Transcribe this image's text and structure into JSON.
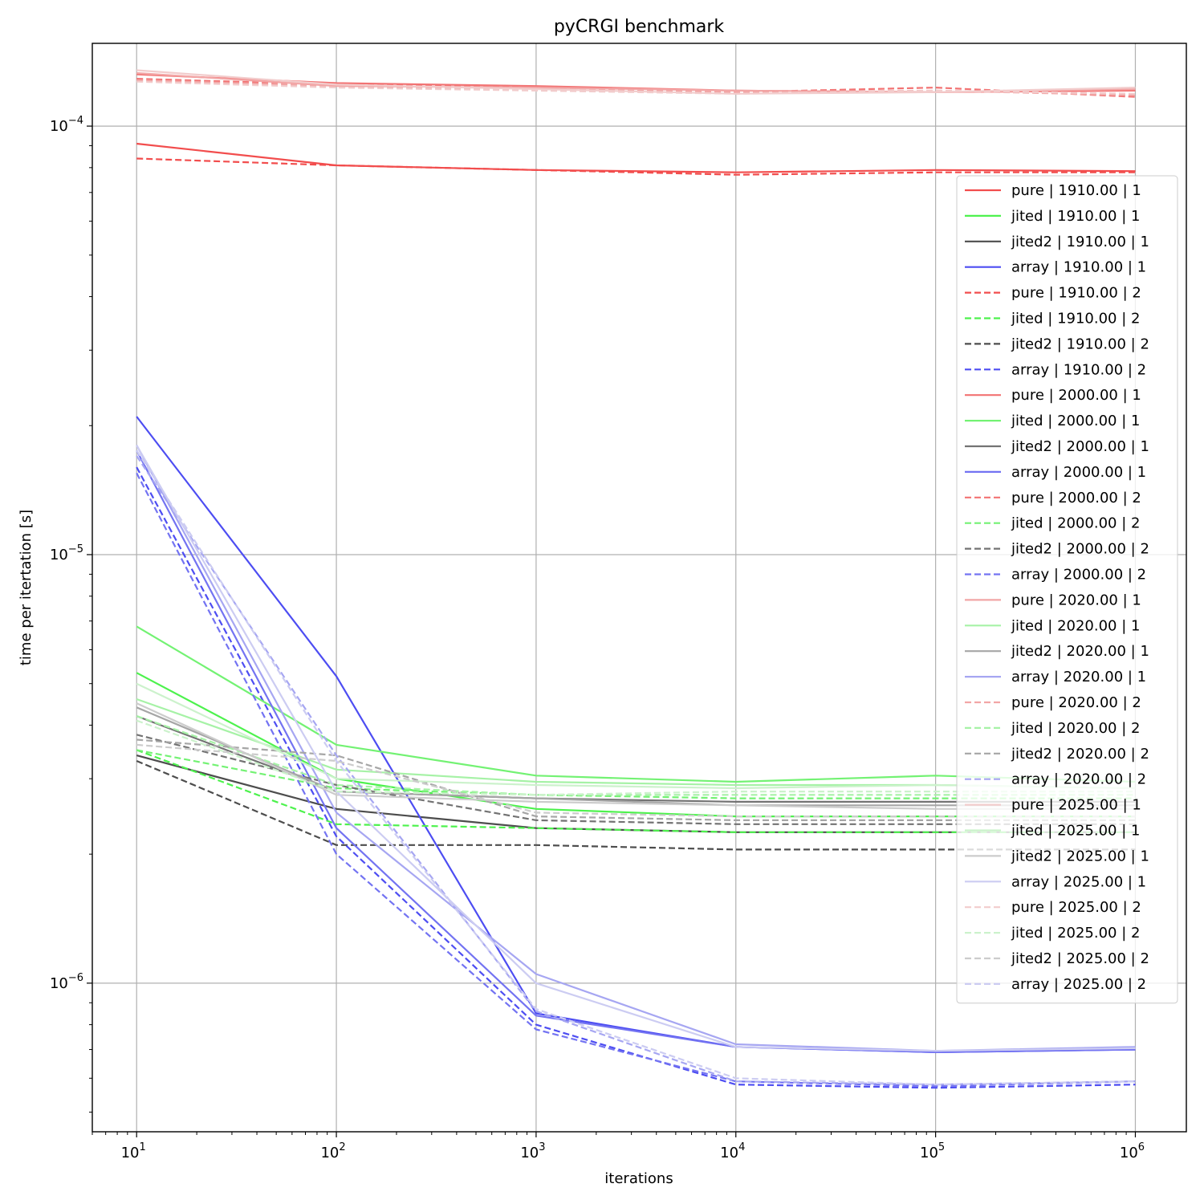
{
  "chart_data": {
    "type": "line",
    "title": "pyCRGI benchmark",
    "xlabel": "iterations",
    "ylabel": "time per itertation [s]",
    "xscale": "log",
    "yscale": "log",
    "xlim": [
      6.0,
      1800000
    ],
    "ylim": [
      4.5e-07,
      0.000156
    ],
    "grid": true,
    "legend_position": "right",
    "x": [
      10,
      100,
      1000,
      10000,
      100000,
      1000000
    ],
    "x_ticks": [
      {
        "base": "10",
        "exp": "1",
        "value": 10
      },
      {
        "base": "10",
        "exp": "2",
        "value": 100
      },
      {
        "base": "10",
        "exp": "3",
        "value": 1000
      },
      {
        "base": "10",
        "exp": "4",
        "value": 10000
      },
      {
        "base": "10",
        "exp": "5",
        "value": 100000
      },
      {
        "base": "10",
        "exp": "6",
        "value": 1000000
      }
    ],
    "y_ticks": [
      {
        "base": "10",
        "exp": "−6",
        "value": 1e-06
      },
      {
        "base": "10",
        "exp": "−5",
        "value": 1e-05
      },
      {
        "base": "10",
        "exp": "−4",
        "value": 0.0001
      }
    ],
    "series": [
      {
        "name": "pure | 1910.00 | 1",
        "color": "#f24d4d",
        "dash": false,
        "values": [
          9.1e-05,
          8.1e-05,
          7.9e-05,
          7.8e-05,
          7.9e-05,
          7.85e-05
        ]
      },
      {
        "name": "jited | 1910.00 | 1",
        "color": "#4df24d",
        "dash": false,
        "values": [
          5.3e-06,
          3e-06,
          2.55e-06,
          2.45e-06,
          2.45e-06,
          2.45e-06
        ]
      },
      {
        "name": "jited2 | 1910.00 | 1",
        "color": "#4d4d4d",
        "dash": false,
        "values": [
          3.4e-06,
          2.55e-06,
          2.3e-06,
          2.25e-06,
          2.25e-06,
          2.25e-06
        ]
      },
      {
        "name": "array | 1910.00 | 1",
        "color": "#4d4df2",
        "dash": false,
        "values": [
          2.1e-05,
          5.2e-06,
          8.5e-07,
          7.1e-07,
          6.9e-07,
          7e-07
        ]
      },
      {
        "name": "pure | 1910.00 | 2",
        "color": "#f24d4d",
        "dash": true,
        "values": [
          8.4e-05,
          8.1e-05,
          7.9e-05,
          7.7e-05,
          7.8e-05,
          7.8e-05
        ]
      },
      {
        "name": "jited | 1910.00 | 2",
        "color": "#4df24d",
        "dash": true,
        "values": [
          3.5e-06,
          2.35e-06,
          2.3e-06,
          2.25e-06,
          2.25e-06,
          2.25e-06
        ]
      },
      {
        "name": "jited2 | 1910.00 | 2",
        "color": "#4d4d4d",
        "dash": true,
        "values": [
          3.3e-06,
          2.1e-06,
          2.1e-06,
          2.05e-06,
          2.05e-06,
          2.05e-06
        ]
      },
      {
        "name": "array | 1910.00 | 2",
        "color": "#4d4df2",
        "dash": true,
        "values": [
          1.6e-05,
          2.2e-06,
          8e-07,
          5.8e-07,
          5.7e-07,
          5.8e-07
        ]
      },
      {
        "name": "pure | 2000.00 | 1",
        "color": "#f27373",
        "dash": false,
        "values": [
          0.000132,
          0.000126,
          0.000124,
          0.000121,
          0.00012,
          0.000121
        ]
      },
      {
        "name": "jited | 2000.00 | 1",
        "color": "#73f273",
        "dash": false,
        "values": [
          6.8e-06,
          3.6e-06,
          3.05e-06,
          2.95e-06,
          3.05e-06,
          2.95e-06
        ]
      },
      {
        "name": "jited2 | 2000.00 | 1",
        "color": "#737373",
        "dash": false,
        "values": [
          4.2e-06,
          2.8e-06,
          2.7e-06,
          2.65e-06,
          2.65e-06,
          2.65e-06
        ]
      },
      {
        "name": "array | 2000.00 | 1",
        "color": "#7373f2",
        "dash": false,
        "values": [
          1.75e-05,
          2.3e-06,
          8.4e-07,
          7.1e-07,
          6.9e-07,
          7e-07
        ]
      },
      {
        "name": "pure | 2000.00 | 2",
        "color": "#f27373",
        "dash": true,
        "values": [
          0.000129,
          0.000125,
          0.000123,
          0.00012,
          0.000123,
          0.000117
        ]
      },
      {
        "name": "jited | 2000.00 | 2",
        "color": "#73f273",
        "dash": true,
        "values": [
          3.5e-06,
          2.85e-06,
          2.75e-06,
          2.7e-06,
          2.7e-06,
          2.7e-06
        ]
      },
      {
        "name": "jited2 | 2000.00 | 2",
        "color": "#737373",
        "dash": true,
        "values": [
          3.8e-06,
          2.9e-06,
          2.4e-06,
          2.35e-06,
          2.35e-06,
          2.35e-06
        ]
      },
      {
        "name": "array | 2000.00 | 2",
        "color": "#7373f2",
        "dash": true,
        "values": [
          1.55e-05,
          2e-06,
          7.8e-07,
          5.9e-07,
          5.75e-07,
          5.9e-07
        ]
      },
      {
        "name": "pure | 2020.00 | 1",
        "color": "#f2a6a6",
        "dash": false,
        "values": [
          0.000133,
          0.000124,
          0.000123,
          0.000121,
          0.00012,
          0.000122
        ]
      },
      {
        "name": "jited | 2020.00 | 1",
        "color": "#a6f2a6",
        "dash": false,
        "values": [
          4.6e-06,
          3.15e-06,
          2.95e-06,
          2.9e-06,
          2.9e-06,
          2.85e-06
        ]
      },
      {
        "name": "jited2 | 2020.00 | 1",
        "color": "#a6a6a6",
        "dash": false,
        "values": [
          4.4e-06,
          2.8e-06,
          2.7e-06,
          2.6e-06,
          2.6e-06,
          2.6e-06
        ]
      },
      {
        "name": "array | 2020.00 | 1",
        "color": "#a6a6f2",
        "dash": false,
        "values": [
          1.8e-05,
          2.5e-06,
          1.05e-06,
          7.2e-07,
          6.95e-07,
          7.1e-07
        ]
      },
      {
        "name": "pure | 2020.00 | 2",
        "color": "#f2a6a6",
        "dash": true,
        "values": [
          0.000128,
          0.000124,
          0.000122,
          0.00012,
          0.000121,
          0.000118
        ]
      },
      {
        "name": "jited | 2020.00 | 2",
        "color": "#a6f2a6",
        "dash": true,
        "values": [
          4.2e-06,
          2.9e-06,
          2.75e-06,
          2.75e-06,
          2.75e-06,
          2.75e-06
        ]
      },
      {
        "name": "jited2 | 2020.00 | 2",
        "color": "#a6a6a6",
        "dash": true,
        "values": [
          3.7e-06,
          3.4e-06,
          2.45e-06,
          2.4e-06,
          2.4e-06,
          2.4e-06
        ]
      },
      {
        "name": "array | 2020.00 | 2",
        "color": "#a6a6f2",
        "dash": true,
        "values": [
          1.7e-05,
          3.4e-06,
          8.6e-07,
          5.9e-07,
          5.8e-07,
          5.9e-07
        ]
      },
      {
        "name": "pure | 2025.00 | 1",
        "color": "#f2cccc",
        "dash": false,
        "values": [
          0.000135,
          0.000125,
          0.000122,
          0.000119,
          0.00012,
          0.000123
        ]
      },
      {
        "name": "jited | 2025.00 | 1",
        "color": "#ccf2cc",
        "dash": false,
        "values": [
          5e-06,
          3e-06,
          2.9e-06,
          2.85e-06,
          2.9e-06,
          2.85e-06
        ]
      },
      {
        "name": "jited2 | 2025.00 | 1",
        "color": "#cccccc",
        "dash": false,
        "values": [
          4.5e-06,
          2.75e-06,
          2.65e-06,
          2.6e-06,
          2.55e-06,
          2.55e-06
        ]
      },
      {
        "name": "array | 2025.00 | 1",
        "color": "#ccccf2",
        "dash": false,
        "values": [
          1.8e-05,
          2.8e-06,
          1e-06,
          7.1e-07,
          6.95e-07,
          7.05e-07
        ]
      },
      {
        "name": "pure | 2025.00 | 2",
        "color": "#f2cccc",
        "dash": true,
        "values": [
          0.000127,
          0.000123,
          0.000121,
          0.000119,
          0.000121,
          0.000119
        ]
      },
      {
        "name": "jited | 2025.00 | 2",
        "color": "#ccf2cc",
        "dash": true,
        "values": [
          4.1e-06,
          2.8e-06,
          2.75e-06,
          2.8e-06,
          2.8e-06,
          2.8e-06
        ]
      },
      {
        "name": "jited2 | 2025.00 | 2",
        "color": "#cccccc",
        "dash": true,
        "values": [
          3.6e-06,
          3.3e-06,
          2.5e-06,
          2.45e-06,
          2.45e-06,
          2.45e-06
        ]
      },
      {
        "name": "array | 2025.00 | 2",
        "color": "#ccccf2",
        "dash": true,
        "values": [
          1.75e-05,
          3.3e-06,
          8.7e-07,
          6e-07,
          5.8e-07,
          5.9e-07
        ]
      }
    ]
  }
}
